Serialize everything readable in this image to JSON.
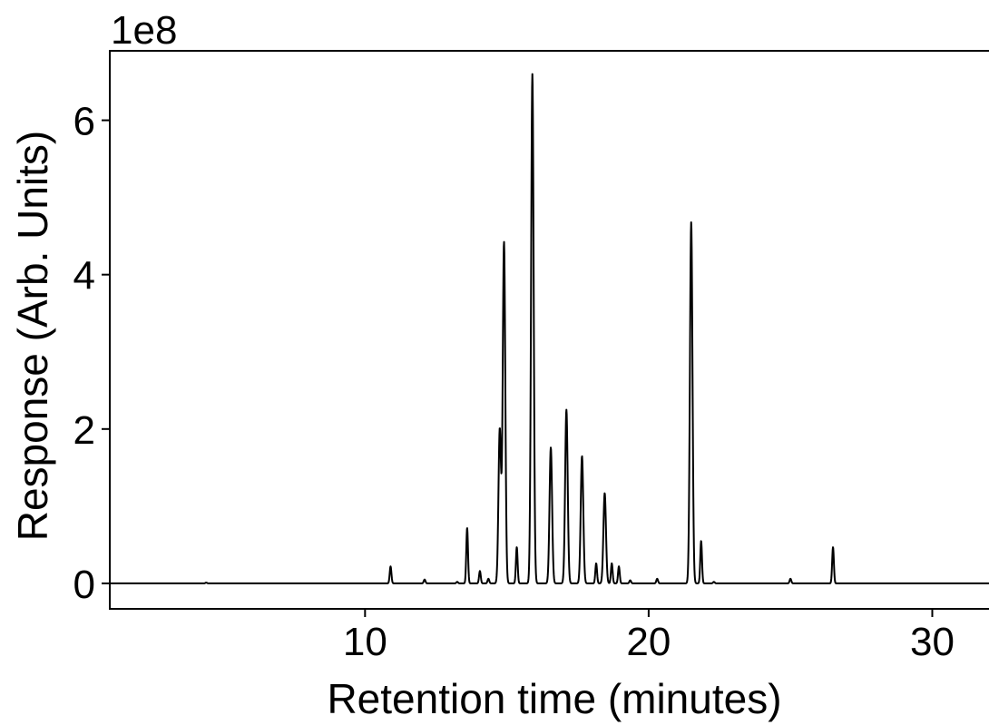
{
  "chart_data": {
    "type": "line",
    "title": "",
    "xlabel": "Retention time (minutes)",
    "ylabel": "Response (Arb. Units)",
    "y_offset_label": "1e8",
    "y_scale_factor": 100000000,
    "xlim": [
      1,
      32
    ],
    "ylim": [
      -0.33,
      6.9
    ],
    "x_ticks": [
      10,
      20,
      30
    ],
    "x_tick_labels": [
      "10",
      "20",
      "30"
    ],
    "y_ticks": [
      0,
      2,
      4,
      6
    ],
    "y_tick_labels": [
      "0",
      "2",
      "4",
      "6"
    ],
    "grid": false,
    "legend": "none",
    "line_color": "#000000",
    "baseline": 0,
    "peaks": [
      {
        "rt": 4.4,
        "height": 0.01
      },
      {
        "rt": 10.9,
        "height": 0.22
      },
      {
        "rt": 12.1,
        "height": 0.05
      },
      {
        "rt": 13.25,
        "height": 0.02
      },
      {
        "rt": 13.6,
        "height": 0.72
      },
      {
        "rt": 14.05,
        "height": 0.16
      },
      {
        "rt": 14.35,
        "height": 0.06
      },
      {
        "rt": 14.75,
        "height": 2.0
      },
      {
        "rt": 14.9,
        "height": 4.42
      },
      {
        "rt": 15.35,
        "height": 0.47
      },
      {
        "rt": 15.9,
        "height": 6.6
      },
      {
        "rt": 16.55,
        "height": 1.76
      },
      {
        "rt": 17.1,
        "height": 2.25
      },
      {
        "rt": 17.65,
        "height": 1.65
      },
      {
        "rt": 18.15,
        "height": 0.26
      },
      {
        "rt": 18.45,
        "height": 1.17
      },
      {
        "rt": 18.7,
        "height": 0.26
      },
      {
        "rt": 18.95,
        "height": 0.22
      },
      {
        "rt": 19.35,
        "height": 0.04
      },
      {
        "rt": 20.3,
        "height": 0.06
      },
      {
        "rt": 21.5,
        "height": 4.68
      },
      {
        "rt": 21.85,
        "height": 0.55
      },
      {
        "rt": 22.3,
        "height": 0.02
      },
      {
        "rt": 25.0,
        "height": 0.06
      },
      {
        "rt": 26.5,
        "height": 0.47
      }
    ]
  }
}
